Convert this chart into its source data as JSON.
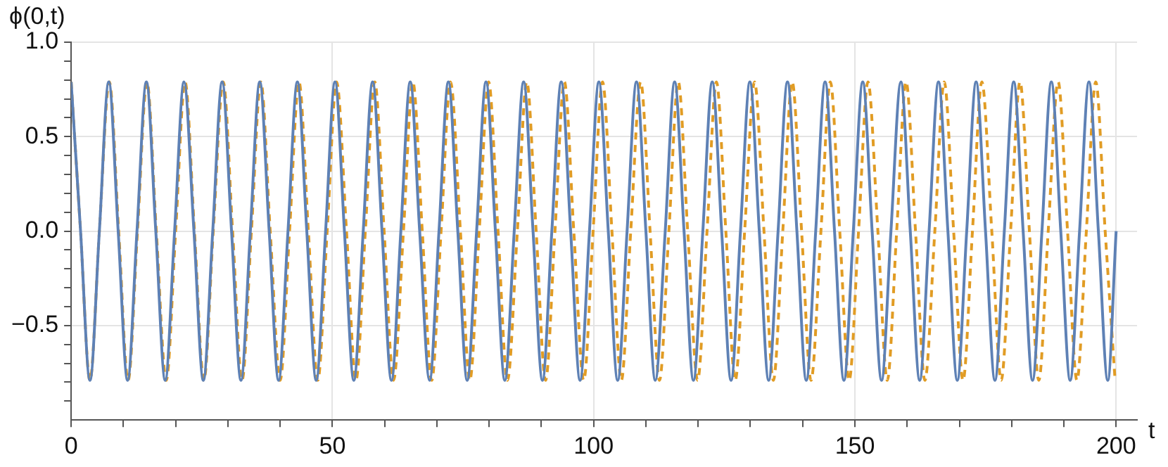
{
  "chart_data": {
    "type": "line",
    "xlabel": "t",
    "ylabel": "ϕ(0,t)",
    "xlim": [
      0,
      204
    ],
    "ylim": [
      -1,
      1
    ],
    "xticks": [
      0,
      {
        "value": 10,
        "label": null
      },
      {
        "value": 20,
        "label": null
      },
      {
        "value": 30,
        "label": null
      },
      {
        "value": 40,
        "label": null
      },
      50,
      {
        "value": 60,
        "label": null
      },
      {
        "value": 70,
        "label": null
      },
      {
        "value": 80,
        "label": null
      },
      {
        "value": 90,
        "label": null
      },
      100,
      {
        "value": 110,
        "label": null
      },
      {
        "value": 120,
        "label": null
      },
      {
        "value": 130,
        "label": null
      },
      {
        "value": 140,
        "label": null
      },
      150,
      {
        "value": 160,
        "label": null
      },
      {
        "value": 170,
        "label": null
      },
      {
        "value": 180,
        "label": null
      },
      {
        "value": 190,
        "label": null
      },
      200
    ],
    "yticks": [
      {
        "value": -0.9,
        "label": null
      },
      {
        "value": -0.8,
        "label": null
      },
      {
        "value": -0.7,
        "label": null
      },
      {
        "value": -0.6,
        "label": null
      },
      {
        "value": -0.5,
        "label": "−0.5"
      },
      {
        "value": -0.4,
        "label": null
      },
      {
        "value": -0.3,
        "label": null
      },
      {
        "value": -0.2,
        "label": null
      },
      {
        "value": -0.1,
        "label": null
      },
      {
        "value": 0,
        "label": "0.0"
      },
      {
        "value": 0.1,
        "label": null
      },
      {
        "value": 0.2,
        "label": null
      },
      {
        "value": 0.3,
        "label": null
      },
      {
        "value": 0.4,
        "label": null
      },
      0.5,
      {
        "value": 0.6,
        "label": null
      },
      {
        "value": 0.7,
        "label": null
      },
      {
        "value": 0.8,
        "label": null
      },
      {
        "value": 0.9,
        "label": null
      },
      {
        "value": 1,
        "label": "1.0"
      }
    ],
    "grid": true,
    "legend": false,
    "marker": "none",
    "series": [
      {
        "color": "#5e81b5",
        "line_style": "solid",
        "x": [
          0,
          1.8,
          3.6,
          5.4,
          7.2,
          9.0,
          10.8,
          12.6,
          14.4,
          16.2,
          18.0,
          19.8,
          21.6,
          23.5,
          25.3,
          27.1,
          28.9,
          30.7,
          32.5,
          34.3,
          36.1,
          37.9,
          39.7,
          41.5,
          43.3,
          45.1,
          46.9,
          48.7,
          50.5,
          52.3,
          54.1,
          55.9,
          57.7,
          59.5,
          61.3,
          63.1,
          64.9,
          66.7,
          68.6,
          70.4,
          72.2,
          74.0,
          75.8,
          77.6,
          79.4,
          81.2,
          83.0,
          84.8,
          86.6,
          88.4,
          90.2,
          92.0,
          93.8,
          95.6,
          97.4,
          99.2,
          101.0,
          102.8,
          104.6,
          106.4,
          108.2,
          110.0,
          111.8,
          113.7,
          115.5,
          117.3,
          119.1,
          120.9,
          122.7,
          124.5,
          126.3,
          128.1,
          129.9,
          131.7,
          133.5,
          135.3,
          137.1,
          138.9,
          140.7,
          142.5,
          144.3,
          146.1,
          147.9,
          149.7,
          151.5,
          153.3,
          155.1,
          156.9,
          158.8,
          160.6,
          162.4,
          164.2,
          166.0,
          167.8,
          169.6,
          171.4,
          173.2,
          175.0,
          176.8,
          178.6,
          180.4,
          182.2,
          184.0,
          185.8,
          187.6,
          189.4,
          191.2,
          193.0,
          194.8,
          196.6,
          198.4,
          200
        ],
        "values": [
          0.79,
          0,
          -0.79,
          0,
          0.79,
          0,
          -0.79,
          0,
          0.79,
          0,
          -0.79,
          0,
          0.79,
          0,
          -0.79,
          0,
          0.79,
          0,
          -0.79,
          0,
          0.79,
          0,
          -0.79,
          0,
          0.79,
          0,
          -0.79,
          0,
          0.79,
          0,
          -0.79,
          0,
          0.79,
          0,
          -0.79,
          0,
          0.79,
          0,
          -0.79,
          0,
          0.79,
          0,
          -0.79,
          0,
          0.79,
          0,
          -0.79,
          0,
          0.79,
          0,
          -0.79,
          0,
          0.79,
          0,
          -0.79,
          0,
          0.79,
          0,
          -0.79,
          0,
          0.79,
          0,
          -0.79,
          0,
          0.79,
          0,
          -0.79,
          0,
          0.79,
          0,
          -0.79,
          0,
          0.79,
          0,
          -0.79,
          0,
          0.79,
          0,
          -0.79,
          0,
          0.79,
          0,
          -0.79,
          0,
          0.79,
          0,
          -0.79,
          0,
          0.79,
          0,
          -0.79,
          0,
          0.79,
          0,
          -0.79,
          0,
          0.79,
          0,
          -0.79,
          0,
          0.79,
          0,
          -0.79,
          0,
          0.79,
          0,
          -0.79,
          0,
          0.79,
          0,
          -0.79,
          0
        ]
      },
      {
        "color": "#e19c24",
        "line_style": "dashed",
        "x": [
          0,
          1.8,
          3.6,
          5.4,
          7.3,
          9.1,
          10.9,
          12.7,
          14.5,
          16.3,
          18.2,
          20.0,
          21.8,
          23.6,
          25.4,
          27.2,
          29.1,
          30.9,
          32.7,
          34.5,
          36.3,
          38.1,
          40.0,
          41.8,
          43.6,
          45.4,
          47.2,
          49.0,
          50.8,
          52.7,
          54.5,
          56.3,
          58.1,
          59.9,
          61.7,
          63.6,
          65.4,
          67.2,
          69.0,
          70.8,
          72.6,
          74.5,
          76.3,
          78.1,
          79.9,
          81.7,
          83.5,
          85.4,
          87.2,
          89.0,
          90.8,
          92.6,
          94.4,
          96.2,
          98.1,
          99.9,
          101.7,
          103.5,
          105.3,
          107.1,
          109.0,
          110.8,
          112.6,
          114.4,
          116.2,
          118.0,
          119.9,
          121.7,
          123.5,
          125.3,
          127.1,
          128.9,
          130.8,
          132.6,
          134.4,
          136.2,
          138.0,
          139.8,
          141.6,
          143.5,
          145.3,
          147.1,
          148.9,
          150.7,
          152.5,
          154.4,
          156.2,
          158.0,
          159.8,
          161.6,
          163.4,
          165.3,
          167.1,
          168.9,
          170.7,
          172.5,
          174.3,
          176.2,
          178.0,
          179.8,
          181.6,
          183.4,
          185.2,
          187.0,
          188.9,
          190.7,
          192.5,
          194.3,
          196.1,
          197.9,
          199.8
        ],
        "values": [
          0.79,
          0,
          -0.79,
          0,
          0.79,
          0,
          -0.79,
          0,
          0.79,
          0,
          -0.79,
          0,
          0.79,
          0,
          -0.79,
          0,
          0.79,
          0,
          -0.79,
          0,
          0.79,
          0,
          -0.79,
          0,
          0.79,
          0,
          -0.79,
          0,
          0.79,
          0,
          -0.79,
          0,
          0.79,
          0,
          -0.79,
          0,
          0.79,
          0,
          -0.79,
          0,
          0.79,
          0,
          -0.79,
          0,
          0.79,
          0,
          -0.79,
          0,
          0.79,
          0,
          -0.79,
          0,
          0.79,
          0,
          -0.79,
          0,
          0.79,
          0,
          -0.79,
          0,
          0.79,
          0,
          -0.79,
          0,
          0.79,
          0,
          -0.79,
          0,
          0.79,
          0,
          -0.79,
          0,
          0.79,
          0,
          -0.79,
          0,
          0.79,
          0,
          -0.79,
          0,
          0.79,
          0,
          -0.79,
          0,
          0.79,
          0,
          -0.79,
          0,
          0.79,
          0,
          -0.79,
          0,
          0.79,
          0,
          -0.79,
          0,
          0.79,
          0,
          -0.79,
          0,
          0.79,
          0,
          -0.79,
          0,
          0.79,
          0,
          -0.79,
          0,
          0.79,
          0,
          -0.79
        ]
      }
    ]
  }
}
